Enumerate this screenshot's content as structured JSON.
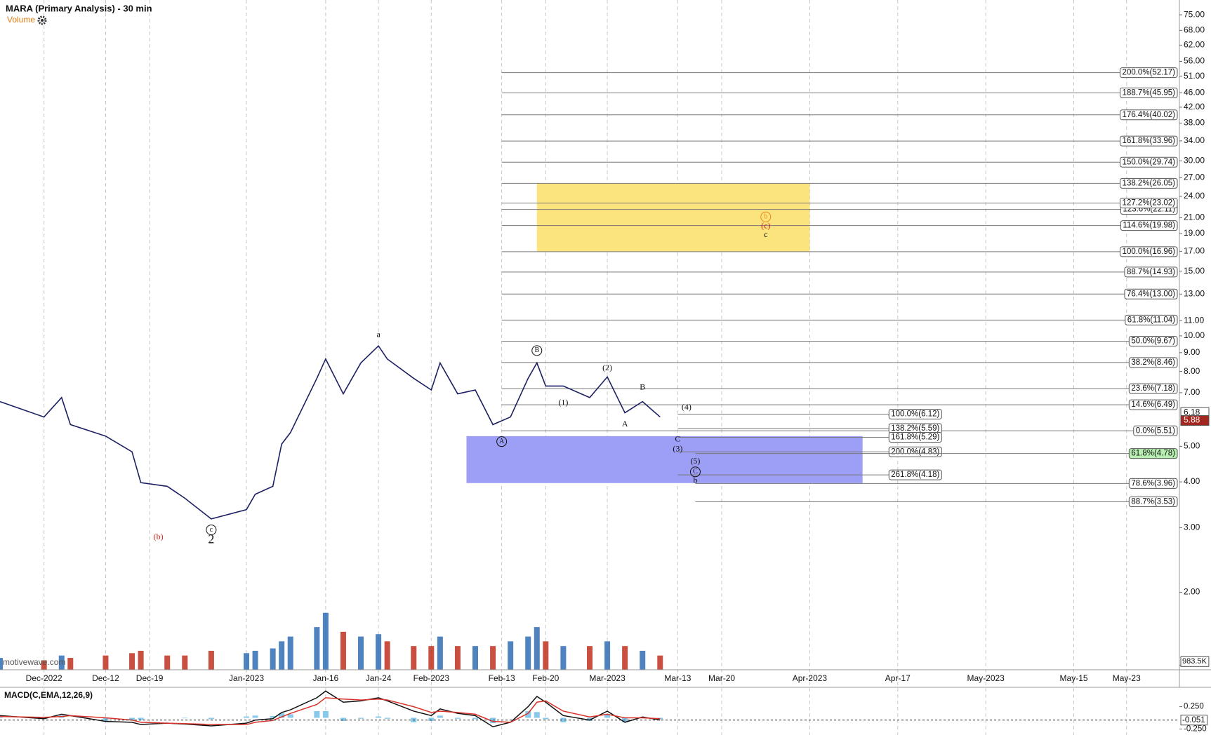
{
  "chart_data": {
    "type": "line",
    "title": "MARA (Primary Analysis) - 30 min",
    "indicator_label": "Volume",
    "watermark": "motivewave.com",
    "log_scale": true,
    "grid": true,
    "x": [
      "2022-11-24",
      "2022-12-01",
      "2022-12-05",
      "2022-12-06",
      "2022-12-12",
      "2022-12-15",
      "2022-12-16",
      "2022-12-21",
      "2022-12-23",
      "2022-12-28",
      "2023-01-03",
      "2023-01-04",
      "2023-01-06",
      "2023-01-09",
      "2023-01-10",
      "2023-01-13",
      "2023-01-16",
      "2023-01-18",
      "2023-01-20",
      "2023-01-24",
      "2023-01-25",
      "2023-01-30",
      "2023-02-01",
      "2023-02-02",
      "2023-02-06",
      "2023-02-08",
      "2023-02-10",
      "2023-02-14",
      "2023-02-16",
      "2023-02-17",
      "2023-02-20",
      "2023-02-22",
      "2023-02-27",
      "2023-03-01",
      "2023-03-03",
      "2023-03-07",
      "2023-03-09"
    ],
    "xlim": [
      "2022-11-24",
      "2023-05-31"
    ],
    "xticks": [
      {
        "value": "2022-12-01",
        "label": "Dec-2022"
      },
      {
        "value": "2022-12-12",
        "label": "Dec-12"
      },
      {
        "value": "2022-12-19",
        "label": "Dec-19"
      },
      {
        "value": "2023-01-03",
        "label": "Jan-2023"
      },
      {
        "value": "2023-01-16",
        "label": "Jan-16"
      },
      {
        "value": "2023-01-24",
        "label": "Jan-24"
      },
      {
        "value": "2023-02-01",
        "label": "Feb-2023"
      },
      {
        "value": "2023-02-13",
        "label": "Feb-13"
      },
      {
        "value": "2023-02-20",
        "label": "Feb-20"
      },
      {
        "value": "2023-03-01",
        "label": "Mar-2023"
      },
      {
        "value": "2023-03-13",
        "label": "Mar-13"
      },
      {
        "value": "2023-03-20",
        "label": "Mar-20"
      },
      {
        "value": "2023-04-03",
        "label": "Apr-2023"
      },
      {
        "value": "2023-04-17",
        "label": "Apr-17"
      },
      {
        "value": "2023-05-01",
        "label": "May-2023"
      },
      {
        "value": "2023-05-15",
        "label": "May-15"
      },
      {
        "value": "2023-05-23",
        "label": "May-23"
      }
    ],
    "ylim": [
      1.23,
      82.3
    ],
    "yticks": [
      {
        "value": 75,
        "label": "75.00"
      },
      {
        "value": 68,
        "label": "68.00"
      },
      {
        "value": 62,
        "label": "62.00"
      },
      {
        "value": 56,
        "label": "56.00"
      },
      {
        "value": 51,
        "label": "51.00"
      },
      {
        "value": 46,
        "label": "46.00"
      },
      {
        "value": 42,
        "label": "42.00"
      },
      {
        "value": 38,
        "label": "38.00"
      },
      {
        "value": 34,
        "label": "34.00"
      },
      {
        "value": 30,
        "label": "30.00"
      },
      {
        "value": 27,
        "label": "27.00"
      },
      {
        "value": 24,
        "label": "24.00"
      },
      {
        "value": 21,
        "label": "21.00"
      },
      {
        "value": 19,
        "label": "19.00"
      },
      {
        "value": 17,
        "label": "17.00"
      },
      {
        "value": 15,
        "label": "15.00"
      },
      {
        "value": 13,
        "label": "13.00"
      },
      {
        "value": 11,
        "label": "11.00"
      },
      {
        "value": 10,
        "label": "10.00"
      },
      {
        "value": 9,
        "label": "9.00"
      },
      {
        "value": 8,
        "label": "8.00"
      },
      {
        "value": 7,
        "label": "7.00"
      },
      {
        "value": 5,
        "label": "5.00"
      },
      {
        "value": 4,
        "label": "4.00"
      },
      {
        "value": 3,
        "label": "3.00"
      },
      {
        "value": 2,
        "label": "2.00"
      }
    ],
    "series": [
      {
        "name": "MARA",
        "color": "#1c2063",
        "values": [
          6.62,
          6.01,
          6.79,
          5.73,
          5.33,
          4.83,
          3.98,
          3.89,
          3.61,
          3.17,
          3.36,
          3.7,
          3.89,
          5.07,
          5.45,
          7.66,
          8.65,
          6.95,
          8.44,
          9.39,
          8.65,
          7.66,
          7.12,
          8.44,
          6.95,
          7.12,
          5.73,
          6.01,
          7.66,
          8.44,
          7.3,
          7.3,
          6.79,
          7.73,
          6.17,
          6.62,
          6.01
        ]
      }
    ],
    "price_tags": [
      {
        "value": 6.18,
        "label": "6.18",
        "color": "#ffffff"
      },
      {
        "value": 5.88,
        "label": "5.88",
        "color": "#a3261f"
      }
    ],
    "volume": {
      "up_color": "#2f6db5",
      "down_color": "#c0301e",
      "vlim": [
        0,
        13000000
      ],
      "ticks": [
        {
          "value": 983500,
          "label": "983.5K"
        }
      ],
      "values": [
        2500000,
        2000000,
        3000000,
        2500000,
        3000000,
        3500000,
        4000000,
        3000000,
        3000000,
        4000000,
        3500000,
        4000000,
        4500000,
        6000000,
        7000000,
        9000000,
        12000000,
        8000000,
        7000000,
        7500000,
        6000000,
        5000000,
        5000000,
        7000000,
        5000000,
        5000000,
        5000000,
        6000000,
        7000000,
        9000000,
        6000000,
        5000000,
        5000000,
        6000000,
        5000000,
        4000000,
        3000000
      ]
    },
    "zones": [
      {
        "from": "2023-02-17",
        "to": "2023-04-03",
        "top": 26.05,
        "bottom": 16.96,
        "color": "#fbe47e"
      },
      {
        "from": "2023-02-07",
        "to": "2023-04-11",
        "top": 5.33,
        "bottom": 3.97,
        "color": "#9d9ef6"
      }
    ],
    "fib_groups": [
      {
        "start": "2023-02-13",
        "levels": [
          {
            "label": "200.0%(52.17)",
            "value": 52.17
          },
          {
            "label": "188.7%(45.95)",
            "value": 45.95
          },
          {
            "label": "176.4%(40.02)",
            "value": 40.02
          },
          {
            "label": "161.8%(33.96)",
            "value": 33.96
          },
          {
            "label": "150.0%(29.74)",
            "value": 29.74
          },
          {
            "label": "138.2%(26.05)",
            "value": 26.05
          },
          {
            "label": "123.6%(22.11)",
            "value": 22.11
          },
          {
            "label": "127.2%(23.02)",
            "value": 23.02
          },
          {
            "label": "114.6%(19.98)",
            "value": 19.98
          },
          {
            "label": "100.0%(16.96)",
            "value": 16.96
          },
          {
            "label": "88.7%(14.93)",
            "value": 14.93
          },
          {
            "label": "76.4%(13.00)",
            "value": 13.0
          },
          {
            "label": "61.8%(11.04)",
            "value": 11.04
          },
          {
            "label": "50.0%(9.67)",
            "value": 9.67
          },
          {
            "label": "38.2%(8.46)",
            "value": 8.46
          },
          {
            "label": "23.6%(7.18)",
            "value": 7.18
          },
          {
            "label": "14.6%(6.49)",
            "value": 6.49
          },
          {
            "label": "0.0%(5.51)",
            "value": 5.51
          }
        ]
      },
      {
        "start": "2023-03-13",
        "end": "2023-04-14",
        "levels": [
          {
            "label": "100.0%(6.12)",
            "value": 6.12
          },
          {
            "label": "138.2%(5.59)",
            "value": 5.59
          },
          {
            "label": "161.8%(5.29)",
            "value": 5.29
          },
          {
            "label": "200.0%(4.83)",
            "value": 4.83
          },
          {
            "label": "261.8%(4.18)",
            "value": 4.18
          }
        ]
      },
      {
        "start": "2023-03-15",
        "levels": [
          {
            "label": "61.8%(4.78)",
            "value": 4.78,
            "color": "#b7efb2"
          },
          {
            "label": "78.6%(3.96)",
            "value": 3.96
          },
          {
            "label": "88.7%(3.53)",
            "value": 3.53
          }
        ]
      }
    ],
    "waves": [
      {
        "label": "a",
        "x": "2023-01-24",
        "y": 10.05,
        "color": "#111111"
      },
      {
        "label": "B",
        "x": "2023-02-17",
        "y": 9.12,
        "color": "#111111",
        "circled": true
      },
      {
        "label": "(2)",
        "x": "2023-03-01",
        "y": 8.16,
        "color": "#111111"
      },
      {
        "label": "B",
        "x": "2023-03-07",
        "y": 7.23,
        "color": "#111111"
      },
      {
        "label": "(1)",
        "x": "2023-02-22",
        "y": 6.56,
        "color": "#111111"
      },
      {
        "label": "(4)",
        "x": "2023-03-14",
        "y": 6.37,
        "color": "#111111"
      },
      {
        "label": "A",
        "x": "2023-03-03",
        "y": 5.73,
        "color": "#111111"
      },
      {
        "label": "A",
        "x": "2023-02-13",
        "y": 5.15,
        "color": "#111111",
        "circled": true
      },
      {
        "label": "C",
        "x": "2023-03-13",
        "y": 5.22,
        "color": "#111111"
      },
      {
        "label": "(3)",
        "x": "2023-03-13",
        "y": 4.9,
        "color": "#111111"
      },
      {
        "label": "(5)",
        "x": "2023-03-15",
        "y": 4.54,
        "color": "#111111"
      },
      {
        "label": "C",
        "x": "2023-03-15",
        "y": 4.26,
        "color": "#111111",
        "circled": true
      },
      {
        "label": "b",
        "x": "2023-03-15",
        "y": 4.02,
        "color": "#111111"
      },
      {
        "label": "b",
        "x": "2023-03-27",
        "y": 21.1,
        "color": "#e8891c",
        "circled": true
      },
      {
        "label": "(c)",
        "x": "2023-03-27",
        "y": 19.9,
        "color": "#d0261b"
      },
      {
        "label": "c",
        "x": "2023-03-27",
        "y": 18.8,
        "color": "#111111"
      },
      {
        "label": "(b)",
        "x": "2022-12-20",
        "y": 2.82,
        "color": "#d0261b"
      },
      {
        "label": "c",
        "x": "2022-12-28",
        "y": 2.96,
        "color": "#111111",
        "circled": true
      },
      {
        "label": "2",
        "x": "2022-12-28",
        "y": 2.77,
        "color": "#111111",
        "large": true
      }
    ],
    "macd": {
      "title": "MACD(C,EMA,12,26,9)",
      "ylim": [
        -0.385,
        0.684
      ],
      "yticks": [
        {
          "value": 0.25,
          "label": "0.250"
        },
        {
          "value": -0.25,
          "label": "-0.250"
        }
      ],
      "last": {
        "value": -0.051,
        "label": "-0.051"
      },
      "hist_color": "#86c9ea",
      "macd": {
        "color": "#111111",
        "values": [
          0.05,
          -0.02,
          0.08,
          0.05,
          -0.08,
          -0.1,
          -0.15,
          -0.12,
          -0.14,
          -0.18,
          -0.12,
          -0.05,
          -0.02,
          0.12,
          0.18,
          0.45,
          0.6,
          0.35,
          0.38,
          0.45,
          0.38,
          0.15,
          0.05,
          0.2,
          0.1,
          0.05,
          -0.2,
          -0.1,
          0.25,
          0.48,
          0.35,
          0.05,
          -0.05,
          0.15,
          -0.1,
          0.02,
          -0.05
        ]
      },
      "signal": {
        "color": "#d8322a",
        "values": [
          0.03,
          0.01,
          0.03,
          0.05,
          0.0,
          -0.05,
          -0.1,
          -0.12,
          -0.13,
          -0.15,
          -0.15,
          -0.1,
          -0.06,
          0.02,
          0.1,
          0.3,
          0.45,
          0.42,
          0.4,
          0.42,
          0.4,
          0.25,
          0.12,
          0.15,
          0.12,
          0.08,
          -0.08,
          -0.1,
          0.1,
          0.35,
          0.38,
          0.15,
          0.02,
          0.08,
          0.0,
          0.0,
          -0.02
        ]
      }
    }
  }
}
